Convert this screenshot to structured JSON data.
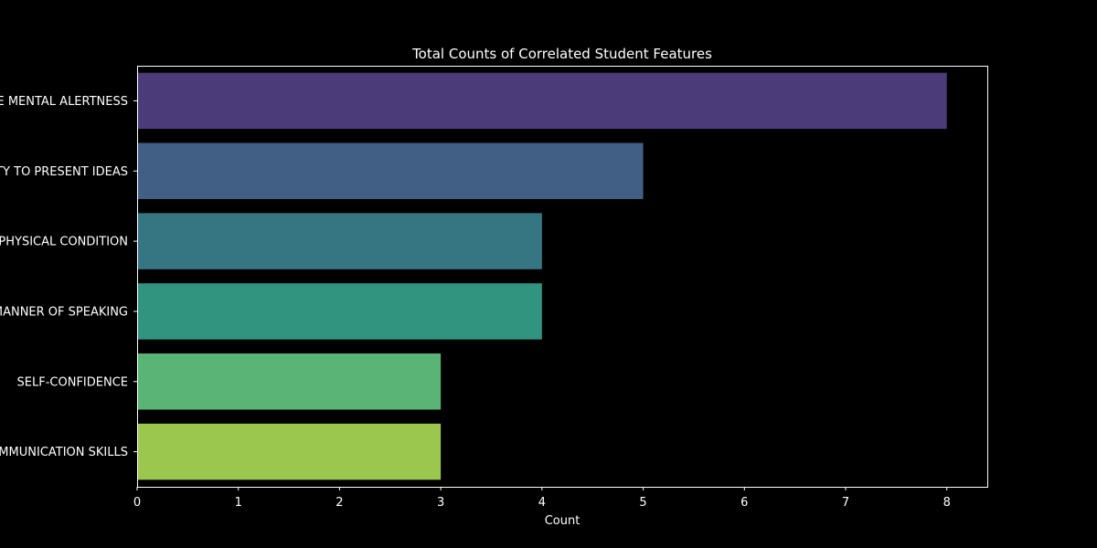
{
  "chart_data": {
    "type": "bar",
    "orientation": "horizontal",
    "title": "Total Counts of Correlated Student Features",
    "xlabel": "Count",
    "ylabel": "",
    "categories": [
      "GENERAL APPEARANCE MENTAL ALERTNESS",
      "ABILITY TO PRESENT IDEAS",
      "PHYSICAL CONDITION",
      "MANNER OF SPEAKING",
      "SELF-CONFIDENCE",
      "COMMUNICATION SKILLS"
    ],
    "values": [
      8,
      5,
      4,
      4,
      3,
      3
    ],
    "colors": [
      "#4b3b78",
      "#415f85",
      "#367682",
      "#30947f",
      "#5ab475",
      "#9bc74f"
    ],
    "xlim": [
      0,
      8.4
    ],
    "xticks": [
      0,
      1,
      2,
      3,
      4,
      5,
      6,
      7,
      8
    ],
    "grid": false,
    "legend": "none"
  },
  "theme": {
    "background": "#000000",
    "foreground": "#ffffff"
  }
}
